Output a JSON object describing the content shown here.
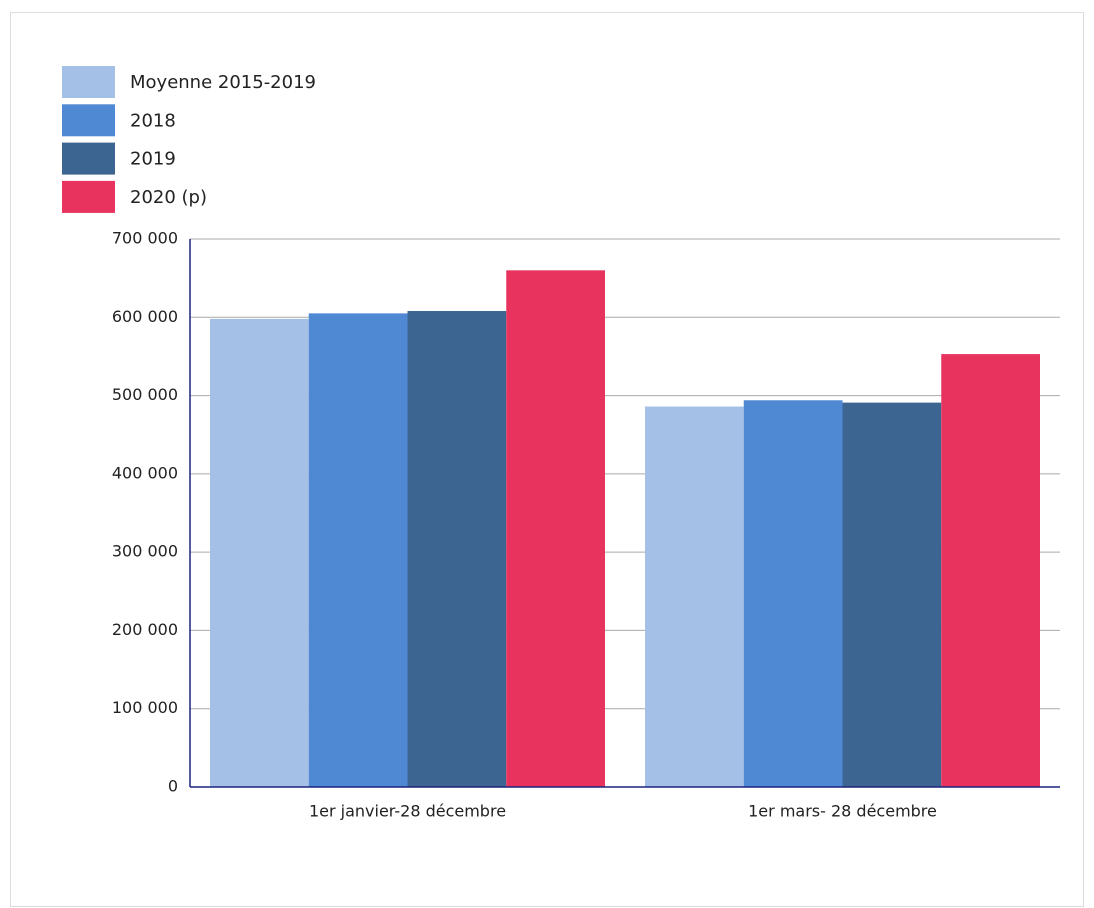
{
  "chart_data": {
    "type": "bar",
    "categories": [
      "1er janvier-28 décembre",
      "1er mars- 28 décembre"
    ],
    "series": [
      {
        "name": "Moyenne 2015-2019",
        "color": "#a4c0e6",
        "values": [
          598000,
          486000
        ]
      },
      {
        "name": "2018",
        "color": "#5089d3",
        "values": [
          605000,
          494000
        ]
      },
      {
        "name": "2019",
        "color": "#3d6591",
        "values": [
          608000,
          491000
        ]
      },
      {
        "name": "2020 (p)",
        "color": "#e8335f",
        "values": [
          660000,
          553000
        ]
      }
    ],
    "ylim": [
      0,
      700000
    ],
    "yticks": [
      0,
      {
        "value": 100000,
        "label": "100 000"
      },
      {
        "value": 200000,
        "label": "200 000"
      },
      {
        "value": 300000,
        "label": "300 000"
      },
      {
        "value": 400000,
        "label": "400 000"
      },
      {
        "value": 500000,
        "label": "500 000"
      },
      {
        "value": 600000,
        "label": "600 000"
      },
      {
        "value": 700000,
        "label": "700 000"
      }
    ],
    "grid": true,
    "legend": "top-left"
  }
}
